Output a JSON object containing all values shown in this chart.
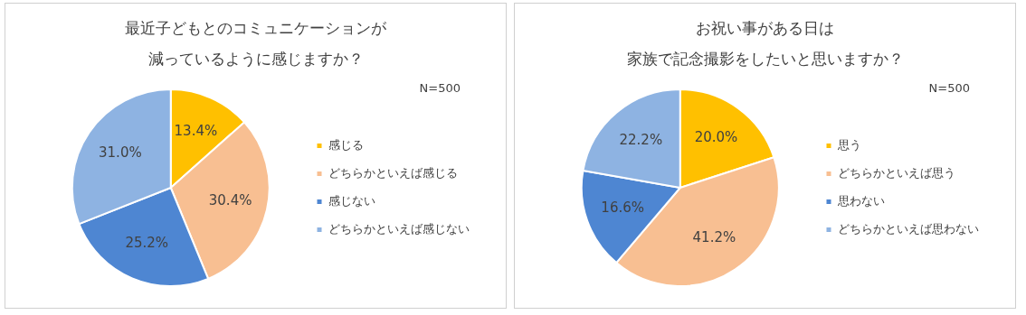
{
  "chart_data": [
    {
      "type": "pie",
      "title": "最近子どもとのコミュニケーションが",
      "subtitle": "減っているように感じますか？",
      "annotations": [
        "N=500"
      ],
      "categories": [
        "感じる",
        "どちらかといえば感じる",
        "感じない",
        "どちらかといえば感じない"
      ],
      "values": [
        13.4,
        30.4,
        25.2,
        31.0
      ],
      "value_labels": [
        "13.4%",
        "30.4%",
        "25.2%",
        "31.0%"
      ],
      "colors": [
        "#ffc000",
        "#f8bf92",
        "#4e86d2",
        "#8eb3e2"
      ],
      "legend": "right"
    },
    {
      "type": "pie",
      "title": "お祝い事がある日は",
      "subtitle": "家族で記念撮影をしたいと思いますか？",
      "annotations": [
        "N=500"
      ],
      "categories": [
        "思う",
        "どちらかといえば思う",
        "思わない",
        "どちらかといえば思わない"
      ],
      "values": [
        20.0,
        41.2,
        16.6,
        22.2
      ],
      "value_labels": [
        "20.0%",
        "41.2%",
        "16.6%",
        "22.2%"
      ],
      "colors": [
        "#ffc000",
        "#f8bf92",
        "#4e86d2",
        "#8eb3e2"
      ],
      "legend": "right"
    }
  ]
}
